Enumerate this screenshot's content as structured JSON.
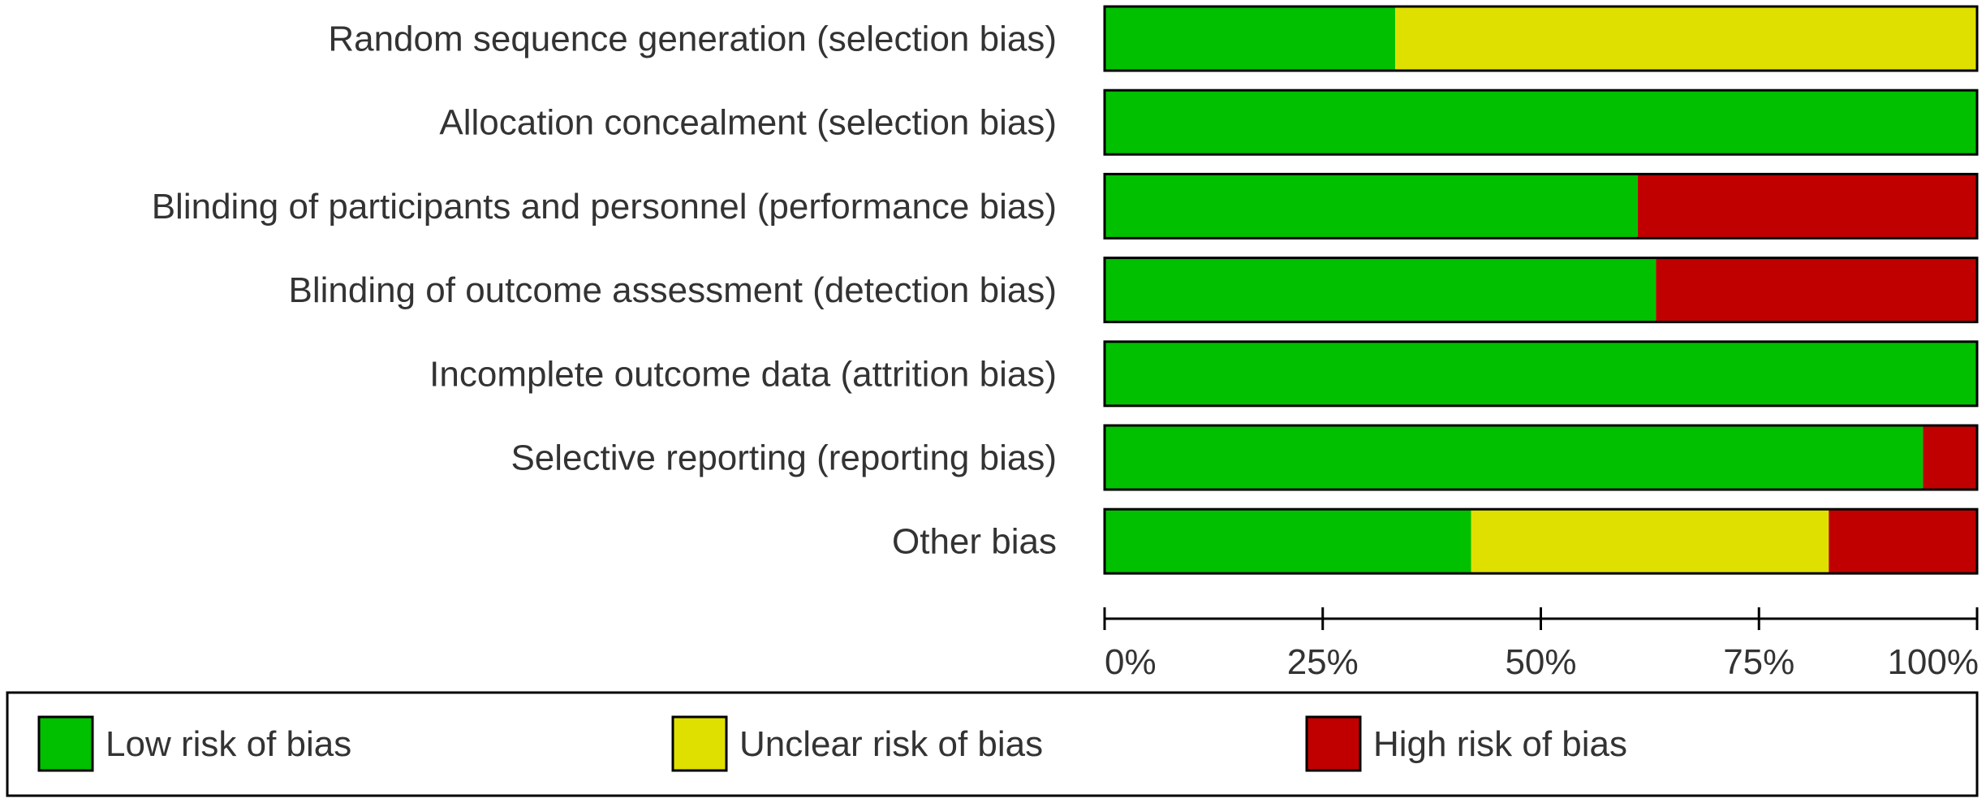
{
  "chart_data": {
    "type": "bar",
    "orientation": "horizontal",
    "stacked": true,
    "categories": [
      "Random sequence generation (selection bias)",
      "Allocation concealment (selection bias)",
      "Blinding of participants and personnel (performance bias)",
      "Blinding of outcome assessment (detection bias)",
      "Incomplete outcome data (attrition bias)",
      "Selective reporting (reporting bias)",
      "Other bias"
    ],
    "series": [
      {
        "name": "Low risk of bias",
        "color": "#00c000",
        "values": [
          33.3,
          100,
          61.1,
          63.2,
          100,
          93.8,
          42.0
        ]
      },
      {
        "name": "Unclear risk of bias",
        "color": "#e0e000",
        "values": [
          66.7,
          0,
          0,
          0,
          0,
          0,
          41.0
        ]
      },
      {
        "name": "High risk of bias",
        "color": "#c00000",
        "values": [
          0,
          0,
          38.9,
          36.8,
          0,
          6.2,
          17.0
        ]
      }
    ],
    "xlim": [
      0,
      100
    ],
    "xticks": [
      0,
      25,
      50,
      75,
      100
    ],
    "xtick_labels": [
      "0%",
      "25%",
      "50%",
      "75%",
      "100%"
    ],
    "legend_position": "bottom",
    "grid": false
  }
}
